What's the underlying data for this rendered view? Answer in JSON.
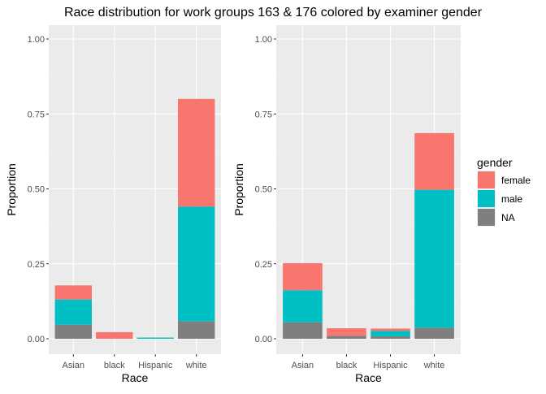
{
  "title": "Race distribution for work groups 163 & 176 colored by examiner gender",
  "legend": {
    "title": "gender",
    "position": "right",
    "entries": [
      {
        "label": "female",
        "color": "#F8766D"
      },
      {
        "label": "male",
        "color": "#00BFC4"
      },
      {
        "label": "NA",
        "color": "#7F7F7F"
      }
    ]
  },
  "chart_data": [
    {
      "type": "bar",
      "stacked": true,
      "xlabel": "Race",
      "ylabel": "Proportion",
      "ylim": [
        0,
        1.0
      ],
      "yticks": [
        "0.00",
        "0.25",
        "0.50",
        "0.75",
        "1.00"
      ],
      "categories": [
        "Asian",
        "black",
        "Hispanic",
        "white"
      ],
      "series": [
        {
          "name": "NA",
          "color": "#7F7F7F",
          "values": [
            0.047,
            0.0,
            0.0,
            0.058
          ]
        },
        {
          "name": "male",
          "color": "#00BFC4",
          "values": [
            0.084,
            0.0,
            0.004,
            0.383
          ]
        },
        {
          "name": "female",
          "color": "#F8766D",
          "values": [
            0.047,
            0.022,
            0.0,
            0.359
          ]
        }
      ],
      "grid": true
    },
    {
      "type": "bar",
      "stacked": true,
      "xlabel": "Race",
      "ylabel": "Proportion",
      "ylim": [
        0,
        1.0
      ],
      "yticks": [
        "0.00",
        "0.25",
        "0.50",
        "0.75",
        "1.00"
      ],
      "categories": [
        "Asian",
        "black",
        "Hispanic",
        "white"
      ],
      "series": [
        {
          "name": "NA",
          "color": "#7F7F7F",
          "values": [
            0.055,
            0.01,
            0.008,
            0.037
          ]
        },
        {
          "name": "male",
          "color": "#00BFC4",
          "values": [
            0.107,
            0.0,
            0.018,
            0.46
          ]
        },
        {
          "name": "female",
          "color": "#F8766D",
          "values": [
            0.09,
            0.025,
            0.008,
            0.189
          ]
        }
      ],
      "grid": true
    }
  ]
}
